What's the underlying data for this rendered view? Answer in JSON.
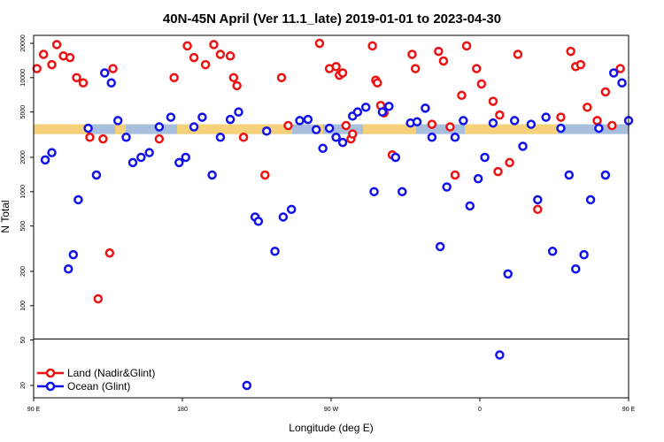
{
  "chart_data": {
    "type": "scatter",
    "title": "40N-45N April (Ver 11.1_late)   2019-01-01 to 2023-04-30",
    "xlabel": "Longitude (deg E)",
    "ylabel": "N Total",
    "xlim": [
      90,
      450
    ],
    "ylim": [
      15,
      25000
    ],
    "y_scale": "log",
    "grid": false,
    "x_ticks": [
      {
        "value": 90,
        "label": "90 E"
      },
      {
        "value": 180,
        "label": "180"
      },
      {
        "value": 270,
        "label": "90 W"
      },
      {
        "value": 360,
        "label": "0"
      },
      {
        "value": 450,
        "label": "90 E"
      },
      {
        "value": 540,
        "label": "180"
      }
    ],
    "y_ticks": [
      20,
      50,
      100,
      200,
      500,
      1000,
      2000,
      5000,
      10000,
      20000
    ],
    "divider_y": 50,
    "band": {
      "ymin": 3200,
      "ymax": 3900,
      "colors": {
        "land": "#f5d27a",
        "ocean": "#a7bfdc"
      }
    },
    "legend_position": "bottom-left",
    "series": [
      {
        "name": "Land (Nadir&Glint)",
        "color": "#ee1111",
        "x": [
          92,
          96,
          101,
          104,
          108,
          112,
          116,
          120,
          124,
          129,
          132,
          136,
          138,
          166,
          175,
          183,
          187,
          194,
          199,
          203,
          209,
          211,
          213,
          217,
          230,
          240,
          244,
          263,
          269,
          273,
          275,
          277,
          279,
          282,
          283,
          295,
          297,
          298,
          300,
          302,
          307,
          319,
          321,
          331,
          335,
          338,
          342,
          345,
          349,
          352,
          358,
          361,
          368,
          371,
          372,
          378,
          383,
          395,
          409,
          415,
          418,
          421,
          425,
          431,
          436,
          440,
          445,
          455,
          461,
          466,
          471
        ],
        "y": [
          12000,
          16000,
          13000,
          19500,
          15500,
          15000,
          10000,
          9000,
          3000,
          115,
          2900,
          290,
          12000,
          2900,
          10000,
          19000,
          15000,
          13000,
          19500,
          16000,
          15500,
          10000,
          8500,
          3000,
          1400,
          10000,
          3800,
          20000,
          12000,
          12500,
          10500,
          11000,
          3800,
          2900,
          3200,
          19000,
          9500,
          9000,
          5700,
          4900,
          2100,
          16000,
          12000,
          3900,
          17000,
          14000,
          3700,
          1400,
          7000,
          19000,
          12000,
          8800,
          6200,
          1500,
          4700,
          1800,
          16000,
          700,
          4500,
          17000,
          12500,
          13000,
          5500,
          4200,
          7500,
          3800,
          12000,
          16000,
          17000,
          13000,
          4300
        ]
      },
      {
        "name": "Ocean (Glint)",
        "color": "#1111ee",
        "x": [
          97,
          101,
          111,
          114,
          117,
          123,
          128,
          133,
          137,
          141,
          146,
          150,
          155,
          160,
          166,
          173,
          178,
          182,
          187,
          192,
          198,
          203,
          209,
          214,
          219,
          224,
          226,
          231,
          236,
          241,
          246,
          251,
          256,
          261,
          265,
          269,
          273,
          277,
          283,
          286,
          291,
          296,
          301,
          305,
          309,
          313,
          318,
          322,
          327,
          331,
          336,
          340,
          345,
          350,
          354,
          359,
          363,
          368,
          372,
          377,
          381,
          386,
          391,
          395,
          400,
          404,
          409,
          414,
          418,
          423,
          427,
          432,
          436,
          441,
          446,
          450,
          455,
          459,
          464,
          468,
          473,
          477
        ],
        "y": [
          1900,
          2200,
          210,
          280,
          850,
          3600,
          1400,
          11000,
          9000,
          4200,
          3000,
          1800,
          2000,
          2200,
          3700,
          4500,
          1800,
          2000,
          3700,
          4500,
          1400,
          3000,
          4300,
          5000,
          20,
          600,
          550,
          3400,
          300,
          600,
          700,
          4200,
          4300,
          3500,
          2400,
          3600,
          3000,
          2700,
          4600,
          5000,
          5500,
          1000,
          5000,
          5600,
          2000,
          1000,
          4000,
          4100,
          5400,
          3000,
          330,
          1100,
          3000,
          4200,
          750,
          1300,
          2000,
          4000,
          37,
          190,
          4200,
          2500,
          3900,
          850,
          4500,
          300,
          3600,
          1400,
          210,
          280,
          850,
          3600,
          1400,
          11000,
          9000,
          4200,
          3000,
          1800,
          2200,
          3700,
          4500,
          1800
        ]
      }
    ]
  }
}
